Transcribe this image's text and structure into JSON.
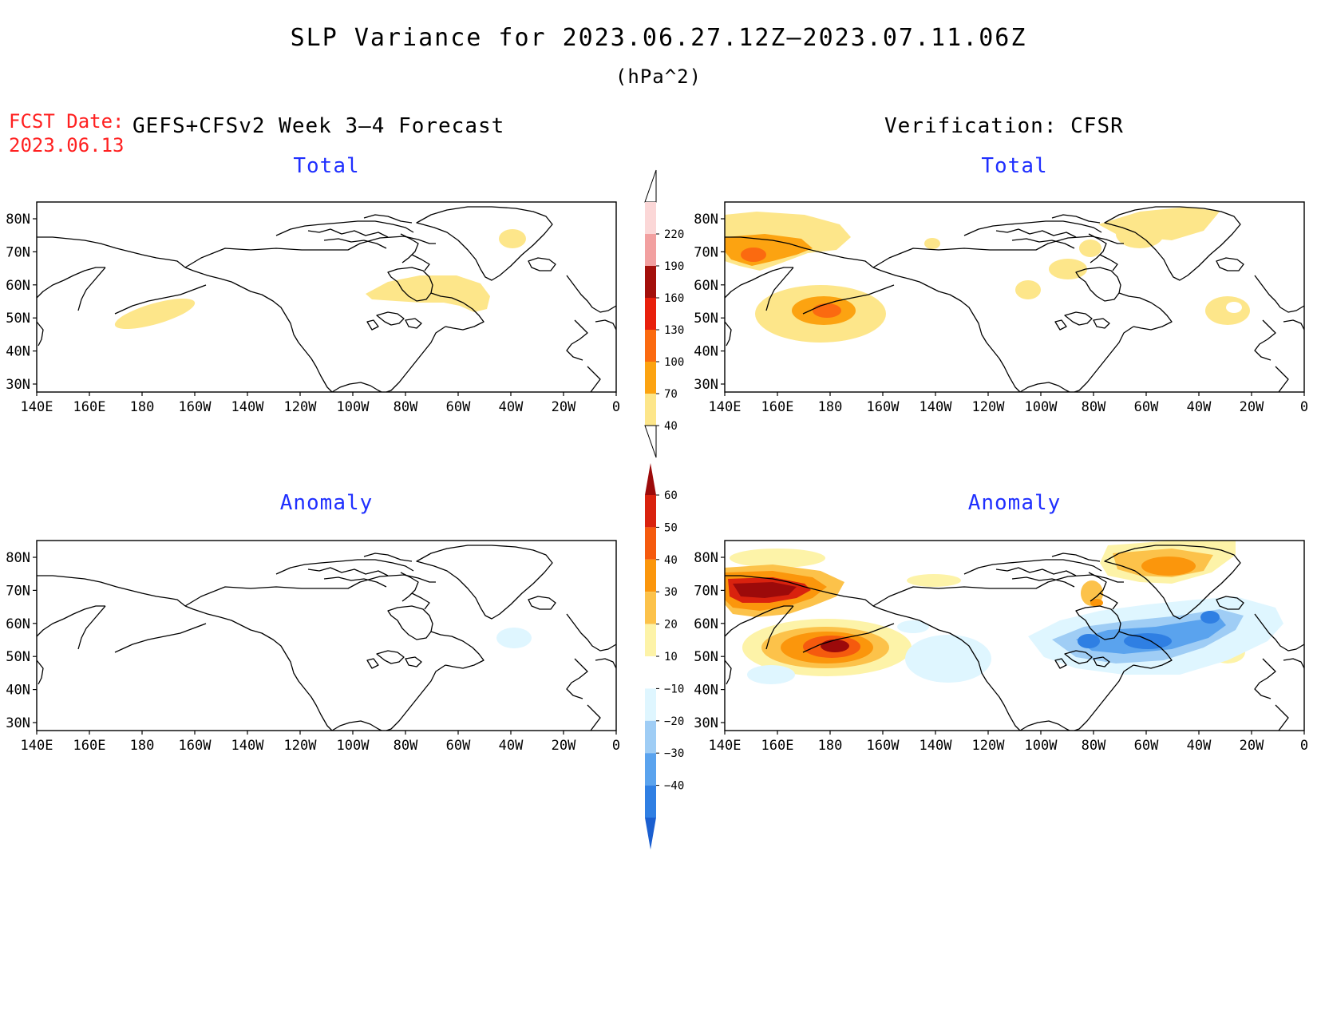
{
  "header": {
    "title": "SLP Variance for 2023.06.27.12Z–2023.07.11.06Z",
    "units": "(hPa^2)",
    "fcst_label": "FCST Date:",
    "fcst_date": "2023.06.13",
    "forecast_label": "GEFS+CFSv2 Week 3–4 Forecast",
    "verification_label": "Verification: CFSR"
  },
  "panels": {
    "fc_total": {
      "title": "Total"
    },
    "ver_total": {
      "title": "Total"
    },
    "fc_anom": {
      "title": "Anomaly"
    },
    "ver_anom": {
      "title": "Anomaly"
    }
  },
  "axes": {
    "lat_labels": [
      "80N",
      "70N",
      "60N",
      "50N",
      "40N",
      "30N"
    ],
    "lon_labels": [
      "140E",
      "160E",
      "180",
      "160W",
      "140W",
      "120W",
      "100W",
      "80W",
      "60W",
      "40W",
      "20W",
      "0"
    ]
  },
  "colorbars": {
    "total": {
      "levels": [
        "40",
        "70",
        "100",
        "130",
        "160",
        "190",
        "220"
      ],
      "colors": [
        "#fde68a",
        "#fca311",
        "#fb6a10",
        "#e8200c",
        "#a30f0b",
        "#f2a0a0",
        "#fbd7d7"
      ]
    },
    "anomaly": {
      "levels": [
        "60",
        "50",
        "40",
        "30",
        "20",
        "10",
        "−10",
        "−20",
        "−30",
        "−40"
      ],
      "colors": [
        "#9c0a0a",
        "#d9220e",
        "#f55a0e",
        "#fb960c",
        "#fcc24a",
        "#fdf3a8",
        "#ffffff",
        "#dff6ff",
        "#9fcdf5",
        "#5aa3ee",
        "#2f7fe3",
        "#1b5fd0"
      ]
    }
  },
  "colors": {
    "fcst_text": "#ff2020",
    "panel_title": "#1f2fff"
  }
}
